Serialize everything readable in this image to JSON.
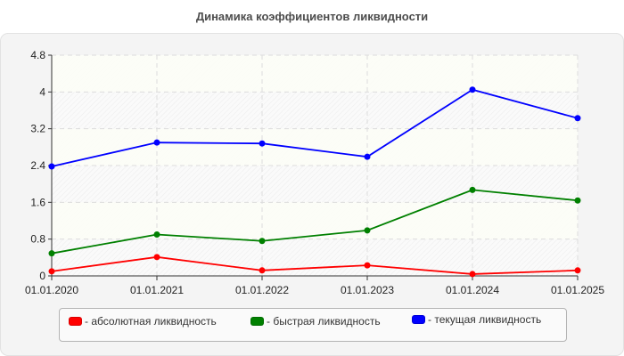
{
  "title": "Динамика коэффициентов ликвидности",
  "chart_data": {
    "type": "line",
    "title": "Динамика коэффициентов ликвидности",
    "xlabel": "",
    "ylabel": "",
    "categories": [
      "01.01.2020",
      "01.01.2021",
      "01.01.2022",
      "01.01.2023",
      "01.01.2024",
      "01.01.2025"
    ],
    "y_ticks": [
      "0",
      "0.8",
      "1.6",
      "2.4",
      "3.2",
      "4",
      "4.8"
    ],
    "ylim": [
      0,
      4.8
    ],
    "grid": true,
    "legend_position": "bottom",
    "series": [
      {
        "name": "абсолютная ликвидность",
        "color": "#ff0000",
        "values": [
          0.1,
          0.41,
          0.12,
          0.23,
          0.04,
          0.12
        ]
      },
      {
        "name": "быстрая ликвидность",
        "color": "#008000",
        "values": [
          0.49,
          0.9,
          0.76,
          0.99,
          1.87,
          1.64
        ]
      },
      {
        "name": "текущая ликвидность",
        "color": "#0000ff",
        "values": [
          2.38,
          2.9,
          2.88,
          2.59,
          4.05,
          3.43
        ]
      }
    ]
  },
  "legend": [
    {
      "label": "- абсолютная ликвидность",
      "color": "#ff0000"
    },
    {
      "label": "- быстрая ликвидность",
      "color": "#008000"
    },
    {
      "label": "- текущая ликвидность",
      "color": "#0000ff"
    }
  ]
}
